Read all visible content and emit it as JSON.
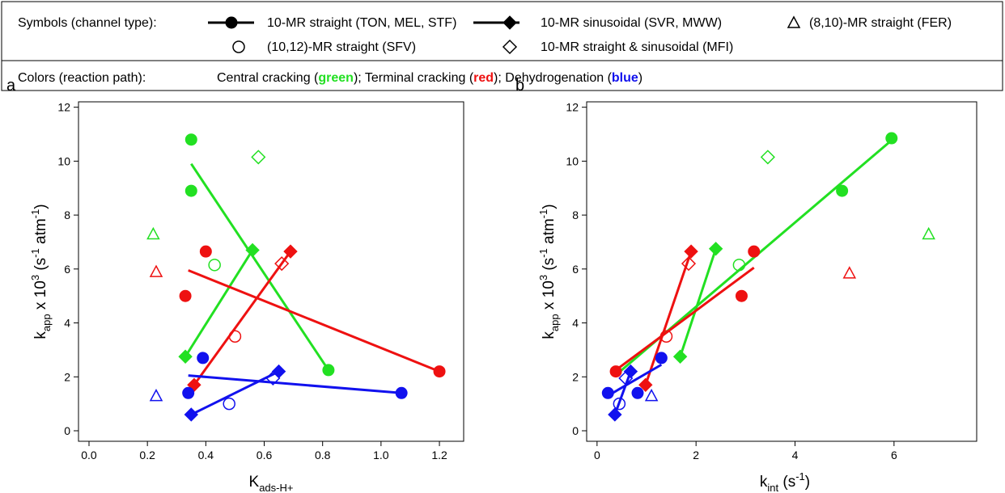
{
  "legend": {
    "symbols_label": "Symbols (channel type):",
    "symbols": [
      {
        "marker": "circle",
        "label": "10-MR straight (TON, MEL, STF)"
      },
      {
        "marker": "diamond",
        "label": "10-MR sinusoidal (SVR, MWW)"
      },
      {
        "marker": "triangle-open",
        "label": "(8,10)-MR straight (FER)"
      },
      {
        "marker": "circle-open",
        "label": "(10,12)-MR straight (SFV)"
      },
      {
        "marker": "diamond-open",
        "label": "10-MR straight & sinusoidal (MFI)"
      }
    ],
    "colors_label": "Colors (reaction path):",
    "colors_text": [
      "Central cracking (",
      "green",
      "); Terminal cracking (",
      "red",
      "); Dehydrogenation (",
      "blue",
      ")"
    ],
    "colors": [
      "#22e022",
      "#ee1111",
      "#1111ee"
    ]
  },
  "chart_data": [
    {
      "type": "scatter",
      "panel_label": "a",
      "x_label": [
        "K",
        "ads-H+"
      ],
      "y_label": [
        "k",
        "app",
        " x 10",
        "3",
        " (s",
        "-1",
        " atm",
        "-1",
        ")"
      ],
      "xlim": [
        -0.036,
        1.283
      ],
      "ylim": [
        -0.39,
        12.2
      ],
      "xticks": [
        {
          "value": 0,
          "label": "0.0"
        },
        0.2,
        0.4,
        0.6,
        0.8,
        {
          "value": 1,
          "label": "1.0"
        },
        1.2
      ],
      "yticks": [
        0,
        2,
        4,
        6,
        8,
        10,
        12
      ],
      "series": [
        {
          "color": "#22e022",
          "marker": "circle",
          "x": [
            0.35,
            0.35,
            0.82
          ],
          "values": [
            10.8,
            8.9,
            2.25
          ]
        },
        {
          "color": "#22e022",
          "marker": "diamond",
          "x": [
            0.33,
            0.56
          ],
          "values": [
            2.75,
            6.7
          ]
        },
        {
          "color": "#22e022",
          "marker": "diamond-open",
          "x": [
            0.58
          ],
          "values": [
            10.15
          ]
        },
        {
          "color": "#22e022",
          "marker": "circle-open",
          "x": [
            0.43
          ],
          "values": [
            6.15
          ]
        },
        {
          "color": "#22e022",
          "marker": "triangle-open",
          "x": [
            0.22
          ],
          "values": [
            7.3
          ]
        },
        {
          "color": "#ee1111",
          "marker": "circle",
          "x": [
            0.4,
            0.33,
            1.2
          ],
          "values": [
            6.65,
            5.0,
            2.2
          ]
        },
        {
          "color": "#ee1111",
          "marker": "diamond",
          "x": [
            0.36,
            0.69
          ],
          "values": [
            1.7,
            6.65
          ]
        },
        {
          "color": "#ee1111",
          "marker": "diamond-open",
          "x": [
            0.66
          ],
          "values": [
            6.2
          ]
        },
        {
          "color": "#ee1111",
          "marker": "circle-open",
          "x": [
            0.5
          ],
          "values": [
            3.5
          ]
        },
        {
          "color": "#ee1111",
          "marker": "triangle-open",
          "x": [
            0.23
          ],
          "values": [
            5.9
          ]
        },
        {
          "color": "#1111ee",
          "marker": "circle",
          "x": [
            0.39,
            0.34,
            1.07
          ],
          "values": [
            2.7,
            1.4,
            1.4
          ]
        },
        {
          "color": "#1111ee",
          "marker": "diamond",
          "x": [
            0.35,
            0.65
          ],
          "values": [
            0.6,
            2.2
          ]
        },
        {
          "color": "#1111ee",
          "marker": "diamond-open",
          "x": [
            0.63
          ],
          "values": [
            1.95
          ]
        },
        {
          "color": "#1111ee",
          "marker": "circle-open",
          "x": [
            0.48
          ],
          "values": [
            1.0
          ]
        },
        {
          "color": "#1111ee",
          "marker": "triangle-open",
          "x": [
            0.23
          ],
          "values": [
            1.3
          ]
        }
      ],
      "fits": [
        {
          "color": "#22e022",
          "x": [
            0.35,
            0.82
          ],
          "values": [
            9.9,
            2.25
          ]
        },
        {
          "color": "#22e022",
          "x": [
            0.33,
            0.56
          ],
          "values": [
            2.75,
            6.7
          ]
        },
        {
          "color": "#ee1111",
          "x": [
            0.34,
            1.2
          ],
          "values": [
            5.95,
            2.2
          ]
        },
        {
          "color": "#ee1111",
          "x": [
            0.36,
            0.69
          ],
          "values": [
            1.7,
            6.65
          ]
        },
        {
          "color": "#1111ee",
          "x": [
            0.34,
            1.07
          ],
          "values": [
            2.05,
            1.4
          ]
        },
        {
          "color": "#1111ee",
          "x": [
            0.35,
            0.65
          ],
          "values": [
            0.6,
            2.2
          ]
        }
      ]
    },
    {
      "type": "scatter",
      "panel_label": "b",
      "x_label": [
        "k",
        "int",
        " (s",
        "-1",
        ")"
      ],
      "y_label": [
        "k",
        "app",
        " x 10",
        "3",
        " (s",
        "-1",
        " atm",
        "-1",
        ")"
      ],
      "xlim": [
        -0.21,
        7.67
      ],
      "ylim": [
        -0.39,
        12.2
      ],
      "xticks": [
        0,
        2,
        4,
        6
      ],
      "yticks": [
        0,
        2,
        4,
        6,
        8,
        10,
        12
      ],
      "series": [
        {
          "color": "#22e022",
          "marker": "circle",
          "x": [
            5.95,
            4.95
          ],
          "values": [
            10.85,
            8.9
          ]
        },
        {
          "color": "#22e022",
          "marker": "diamond",
          "x": [
            1.68,
            2.4
          ],
          "values": [
            2.75,
            6.75
          ]
        },
        {
          "color": "#22e022",
          "marker": "diamond-open",
          "x": [
            3.45
          ],
          "values": [
            10.15
          ]
        },
        {
          "color": "#22e022",
          "marker": "circle-open",
          "x": [
            2.87
          ],
          "values": [
            6.15
          ]
        },
        {
          "color": "#22e022",
          "marker": "triangle-open",
          "x": [
            6.7
          ],
          "values": [
            7.3
          ]
        },
        {
          "color": "#ee1111",
          "marker": "circle",
          "x": [
            3.17,
            2.92,
            0.38
          ],
          "values": [
            6.65,
            5.0,
            2.2
          ]
        },
        {
          "color": "#ee1111",
          "marker": "diamond",
          "x": [
            0.98,
            1.9
          ],
          "values": [
            1.7,
            6.65
          ]
        },
        {
          "color": "#ee1111",
          "marker": "diamond-open",
          "x": [
            1.85
          ],
          "values": [
            6.2
          ]
        },
        {
          "color": "#ee1111",
          "marker": "circle-open",
          "x": [
            1.4
          ],
          "values": [
            3.5
          ]
        },
        {
          "color": "#ee1111",
          "marker": "triangle-open",
          "x": [
            5.1
          ],
          "values": [
            5.85
          ]
        },
        {
          "color": "#1111ee",
          "marker": "circle",
          "x": [
            1.3,
            0.22,
            0.82
          ],
          "values": [
            2.7,
            1.4,
            1.4
          ]
        },
        {
          "color": "#1111ee",
          "marker": "diamond",
          "x": [
            0.36,
            0.68
          ],
          "values": [
            0.6,
            2.2
          ]
        },
        {
          "color": "#1111ee",
          "marker": "diamond-open",
          "x": [
            0.58
          ],
          "values": [
            1.95
          ]
        },
        {
          "color": "#1111ee",
          "marker": "circle-open",
          "x": [
            0.45
          ],
          "values": [
            1.0
          ]
        },
        {
          "color": "#1111ee",
          "marker": "triangle-open",
          "x": [
            1.1
          ],
          "values": [
            1.3
          ]
        }
      ],
      "fits": [
        {
          "color": "#22e022",
          "x": [
            0.4,
            6.0
          ],
          "values": [
            2.1,
            10.85
          ]
        },
        {
          "color": "#22e022",
          "x": [
            1.68,
            2.4
          ],
          "values": [
            2.75,
            6.75
          ]
        },
        {
          "color": "#ee1111",
          "x": [
            0.38,
            3.17
          ],
          "values": [
            2.25,
            6.05
          ]
        },
        {
          "color": "#ee1111",
          "x": [
            0.98,
            1.9
          ],
          "values": [
            1.7,
            6.65
          ]
        },
        {
          "color": "#1111ee",
          "x": [
            0.22,
            1.3
          ],
          "values": [
            1.3,
            2.45
          ]
        },
        {
          "color": "#1111ee",
          "x": [
            0.36,
            0.68
          ],
          "values": [
            0.6,
            2.2
          ]
        }
      ]
    }
  ]
}
